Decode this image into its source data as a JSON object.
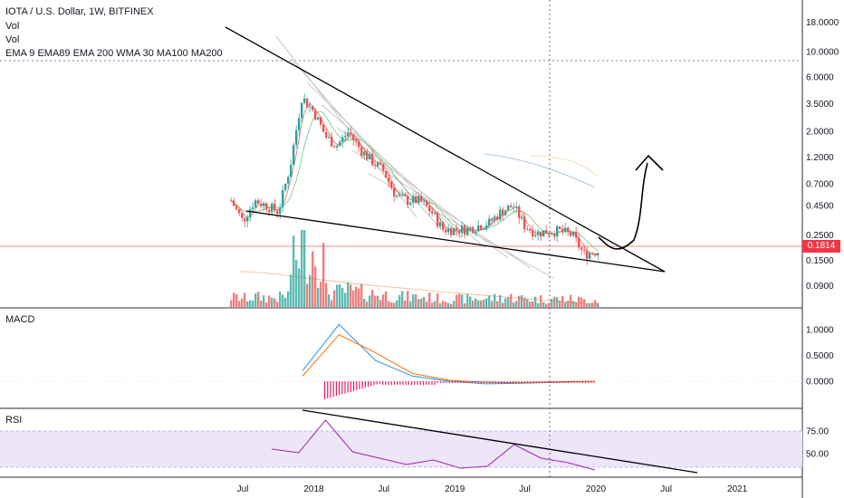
{
  "header": {
    "title": "IOTA / U.S. Dollar, 1W, BITFINEX",
    "vol1": "Vol",
    "vol2": "Vol",
    "ma_line": "EMA 9 EMA89 EMA 200 WMA 30 MA100 MA200"
  },
  "current_price": "0.1814",
  "panes": {
    "macd": "MACD",
    "rsi": "RSI"
  },
  "colors": {
    "up": "#26a69a",
    "down": "#ef5350",
    "trendline": "#000000",
    "rsi_band": "#e9e1f7",
    "macd_line": "#2196f3",
    "signal_line": "#ff6d00",
    "rsi_line": "#9c27b0",
    "histogram": "#e91e63"
  },
  "chart_data": [
    {
      "type": "candlestick",
      "title": "IOTA / U.S. Dollar, 1W, BITFINEX",
      "y_scale": "log",
      "y_ticks": [
        "18.0000",
        "10.0000",
        "6.0000",
        "3.5000",
        "2.0000",
        "1.2000",
        "0.7000",
        "0.4500",
        "0.2500",
        "0.1500",
        "0.0900"
      ],
      "x_ticks": [
        "Jul",
        "2018",
        "Jul",
        "2019",
        "Jul",
        "2020",
        "Jul",
        "2021"
      ],
      "close_path": [
        [
          "2017-06",
          0.5
        ],
        [
          "2017-07",
          0.33
        ],
        [
          "2017-08",
          0.5
        ],
        [
          "2017-09",
          0.45
        ],
        [
          "2017-10",
          0.4
        ],
        [
          "2017-11",
          1.0
        ],
        [
          "2017-12",
          4.0
        ],
        [
          "2018-01",
          3.0
        ],
        [
          "2018-02",
          1.8
        ],
        [
          "2018-03",
          1.5
        ],
        [
          "2018-04",
          2.0
        ],
        [
          "2018-05",
          1.4
        ],
        [
          "2018-06",
          1.1
        ],
        [
          "2018-07",
          0.9
        ],
        [
          "2018-08",
          0.55
        ],
        [
          "2018-09",
          0.5
        ],
        [
          "2018-10",
          0.5
        ],
        [
          "2018-11",
          0.4
        ],
        [
          "2018-12",
          0.28
        ],
        [
          "2019-01",
          0.28
        ],
        [
          "2019-02",
          0.28
        ],
        [
          "2019-03",
          0.3
        ],
        [
          "2019-04",
          0.32
        ],
        [
          "2019-05",
          0.4
        ],
        [
          "2019-06",
          0.45
        ],
        [
          "2019-07",
          0.3
        ],
        [
          "2019-08",
          0.26
        ],
        [
          "2019-09",
          0.27
        ],
        [
          "2019-10",
          0.27
        ],
        [
          "2019-11",
          0.25
        ],
        [
          "2019-12",
          0.17
        ],
        [
          "2020-01",
          0.18
        ]
      ],
      "annotations": [
        "descending upper trendline",
        "descending lower trendline",
        "projected breakout arrow"
      ]
    },
    {
      "type": "line",
      "title": "MACD",
      "y_ticks": [
        "1.0000",
        "0.5000",
        "0.0000"
      ],
      "series": [
        {
          "name": "MACD",
          "values": [
            0.2,
            1.1,
            0.4,
            0.1,
            0.0,
            -0.05,
            -0.04,
            -0.02,
            0.0
          ]
        },
        {
          "name": "Signal",
          "values": [
            0.1,
            0.9,
            0.55,
            0.15,
            0.02,
            -0.02,
            -0.03,
            -0.01,
            0.0
          ]
        }
      ]
    },
    {
      "type": "line",
      "title": "RSI",
      "y_ticks": [
        "75.00",
        "50.00"
      ],
      "band": [
        30,
        70
      ],
      "series": [
        {
          "name": "RSI",
          "values": [
            55,
            51,
            87,
            52,
            45,
            38,
            43,
            34,
            36,
            60,
            45,
            40,
            32
          ]
        }
      ]
    }
  ]
}
